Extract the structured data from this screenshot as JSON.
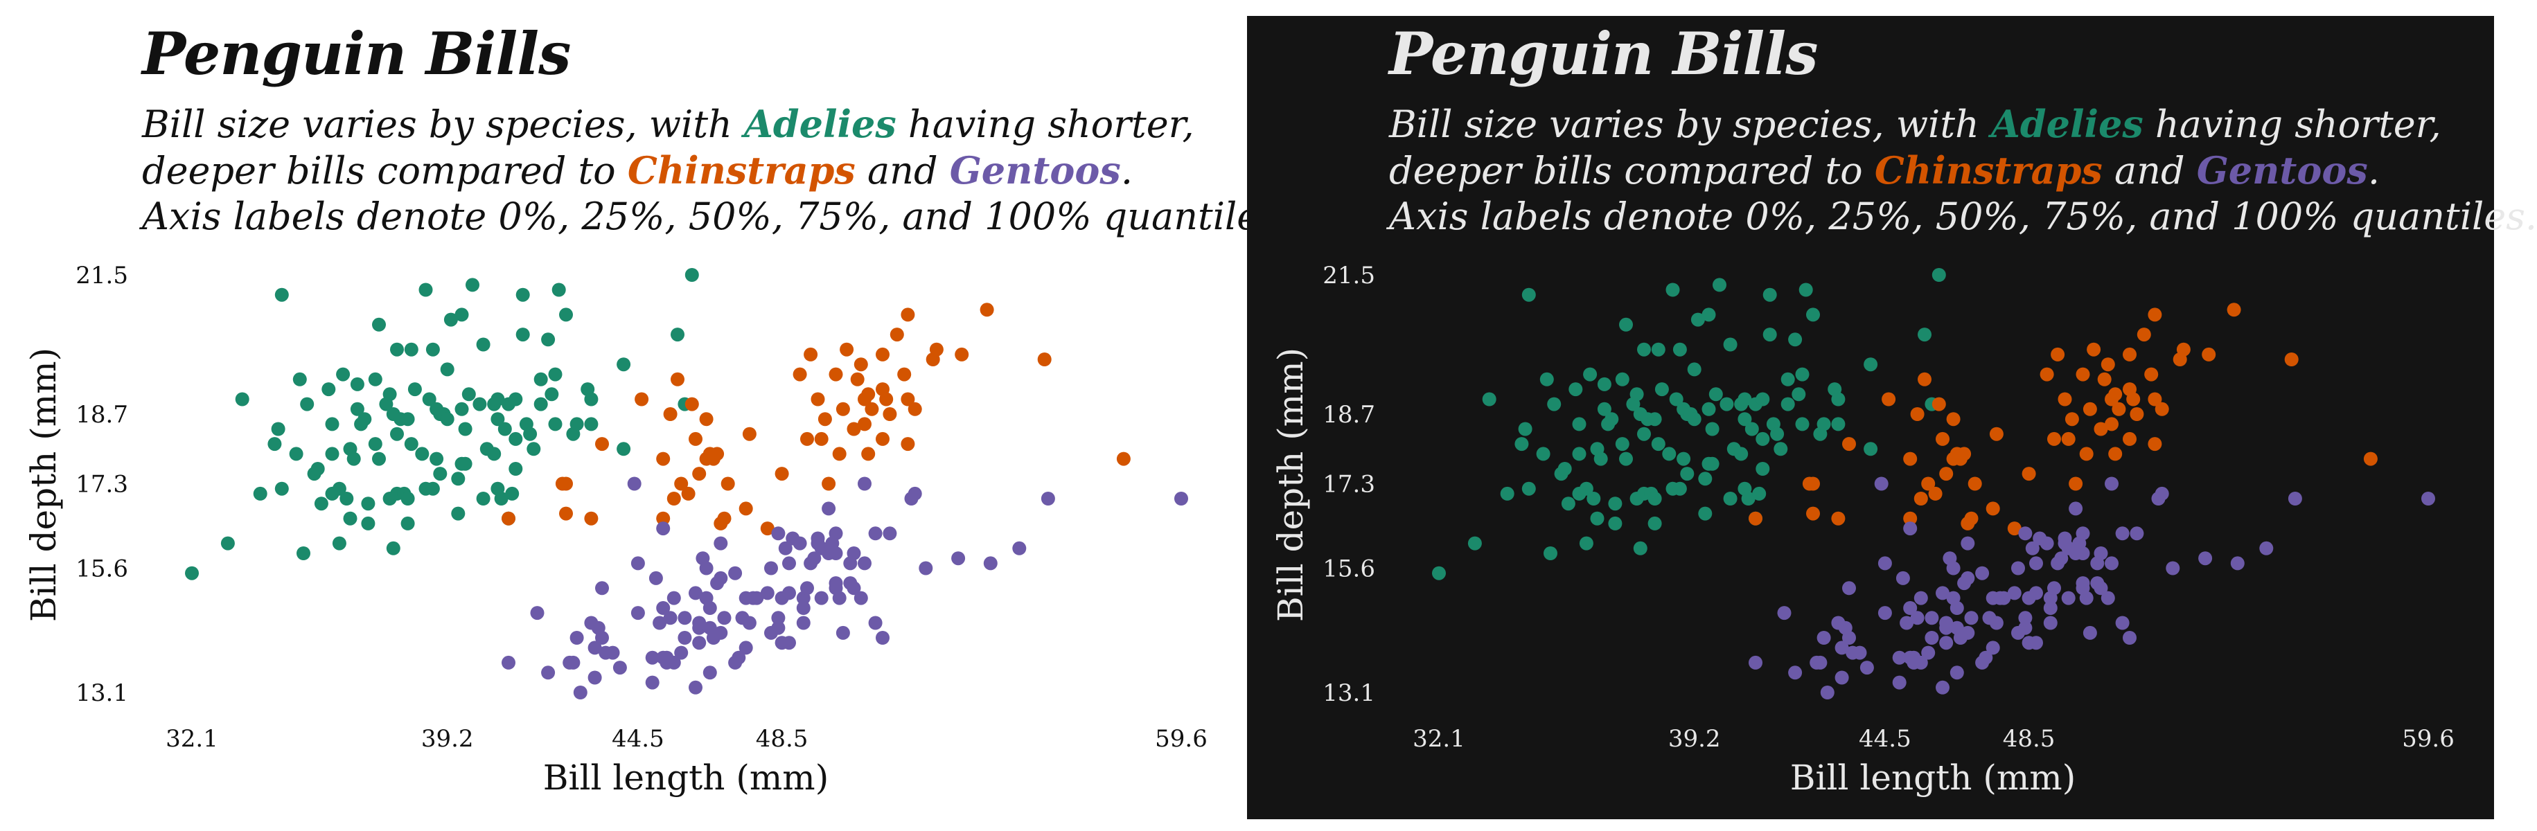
{
  "title": "Penguin Bills",
  "subtitle": {
    "line1_a": "Bill size varies by species, with ",
    "adelie": "Adelies",
    "line1_b": " having shorter,",
    "line2_a": "deeper bills compared to ",
    "chinstrap": "Chinstraps",
    "line2_b": " and ",
    "gentoo": "Gentoos",
    "line2_c": ".",
    "line3": "Axis labels denote 0%, 25%, 50%, 75%, and 100% quantiles."
  },
  "colors": {
    "adelie": "#1b8a6b",
    "chinstrap": "#d35400",
    "gentoo": "#6c5aa8",
    "light_bg": "#ffffff",
    "dark_bg": "#141414",
    "light_text": "#111111",
    "dark_text": "#e8e8e8"
  },
  "chart_data": {
    "type": "scatter",
    "xlabel": "Bill length (mm)",
    "ylabel": "Bill depth (mm)",
    "xlim": [
      32.1,
      59.6
    ],
    "ylim": [
      13.1,
      21.5
    ],
    "xticks": [
      32.1,
      39.2,
      44.5,
      48.5,
      59.6
    ],
    "yticks": [
      13.1,
      15.6,
      17.3,
      18.7,
      21.5
    ],
    "grid": false,
    "legend": "none",
    "series": [
      {
        "name": "Adelie",
        "points": [
          [
            32.1,
            15.5
          ],
          [
            33.1,
            16.1
          ],
          [
            33.5,
            19.0
          ],
          [
            34.0,
            17.1
          ],
          [
            34.4,
            18.1
          ],
          [
            34.5,
            18.4
          ],
          [
            34.6,
            17.2
          ],
          [
            34.6,
            21.1
          ],
          [
            35.0,
            17.9
          ],
          [
            35.1,
            19.4
          ],
          [
            35.2,
            15.9
          ],
          [
            35.3,
            18.9
          ],
          [
            35.5,
            17.5
          ],
          [
            35.6,
            17.6
          ],
          [
            35.7,
            16.9
          ],
          [
            35.9,
            19.2
          ],
          [
            36.0,
            17.9
          ],
          [
            36.0,
            18.5
          ],
          [
            36.0,
            17.1
          ],
          [
            36.2,
            16.1
          ],
          [
            36.2,
            17.2
          ],
          [
            36.3,
            19.5
          ],
          [
            36.4,
            17.0
          ],
          [
            36.5,
            18.0
          ],
          [
            36.5,
            16.6
          ],
          [
            36.6,
            17.8
          ],
          [
            36.7,
            18.8
          ],
          [
            36.7,
            19.3
          ],
          [
            36.8,
            18.5
          ],
          [
            36.9,
            18.6
          ],
          [
            37.0,
            16.9
          ],
          [
            37.0,
            16.5
          ],
          [
            37.2,
            18.1
          ],
          [
            37.2,
            19.4
          ],
          [
            37.3,
            20.5
          ],
          [
            37.3,
            17.8
          ],
          [
            37.5,
            18.9
          ],
          [
            37.6,
            19.1
          ],
          [
            37.6,
            17.0
          ],
          [
            37.7,
            18.7
          ],
          [
            37.7,
            16.0
          ],
          [
            37.8,
            17.1
          ],
          [
            37.8,
            18.3
          ],
          [
            37.8,
            20.0
          ],
          [
            37.9,
            18.6
          ],
          [
            38.0,
            17.1
          ],
          [
            38.1,
            18.6
          ],
          [
            38.1,
            17.0
          ],
          [
            38.1,
            16.5
          ],
          [
            38.2,
            18.1
          ],
          [
            38.2,
            20.0
          ],
          [
            38.3,
            19.2
          ],
          [
            38.5,
            17.9
          ],
          [
            38.6,
            21.2
          ],
          [
            38.6,
            17.2
          ],
          [
            38.7,
            19.0
          ],
          [
            38.8,
            17.2
          ],
          [
            38.8,
            20.0
          ],
          [
            38.9,
            17.8
          ],
          [
            38.9,
            18.8
          ],
          [
            39.0,
            17.5
          ],
          [
            39.0,
            18.7
          ],
          [
            39.1,
            18.7
          ],
          [
            39.2,
            19.6
          ],
          [
            39.2,
            18.6
          ],
          [
            39.3,
            20.6
          ],
          [
            39.5,
            17.4
          ],
          [
            39.5,
            16.7
          ],
          [
            39.6,
            18.8
          ],
          [
            39.6,
            17.7
          ],
          [
            39.6,
            20.7
          ],
          [
            39.7,
            18.4
          ],
          [
            39.7,
            17.7
          ],
          [
            39.8,
            19.1
          ],
          [
            39.9,
            21.3
          ],
          [
            40.1,
            18.9
          ],
          [
            40.2,
            17.0
          ],
          [
            40.2,
            20.1
          ],
          [
            40.3,
            18.0
          ],
          [
            40.5,
            17.9
          ],
          [
            40.5,
            18.9
          ],
          [
            40.6,
            18.6
          ],
          [
            40.6,
            17.2
          ],
          [
            40.6,
            19.0
          ],
          [
            40.7,
            17.0
          ],
          [
            40.8,
            18.4
          ],
          [
            40.9,
            16.6
          ],
          [
            40.9,
            18.9
          ],
          [
            41.0,
            17.1
          ],
          [
            41.1,
            17.6
          ],
          [
            41.1,
            19.0
          ],
          [
            41.1,
            18.2
          ],
          [
            41.3,
            20.3
          ],
          [
            41.3,
            21.1
          ],
          [
            41.4,
            18.5
          ],
          [
            41.5,
            18.3
          ],
          [
            41.6,
            18.0
          ],
          [
            41.8,
            19.4
          ],
          [
            41.8,
            18.9
          ],
          [
            42.0,
            20.2
          ],
          [
            42.1,
            19.1
          ],
          [
            42.2,
            18.5
          ],
          [
            42.2,
            19.5
          ],
          [
            42.3,
            21.2
          ],
          [
            42.5,
            20.7
          ],
          [
            42.7,
            18.3
          ],
          [
            42.8,
            18.5
          ],
          [
            43.1,
            19.2
          ],
          [
            43.2,
            19.0
          ],
          [
            43.2,
            18.5
          ],
          [
            44.1,
            19.7
          ],
          [
            44.1,
            18.0
          ],
          [
            45.6,
            20.3
          ],
          [
            45.8,
            18.9
          ],
          [
            46.0,
            21.5
          ]
        ]
      },
      {
        "name": "Chinstrap",
        "points": [
          [
            40.9,
            16.6
          ],
          [
            42.4,
            17.3
          ],
          [
            42.5,
            17.3
          ],
          [
            42.5,
            16.7
          ],
          [
            43.2,
            16.6
          ],
          [
            43.5,
            18.1
          ],
          [
            44.6,
            19.0
          ],
          [
            45.2,
            16.6
          ],
          [
            45.2,
            17.8
          ],
          [
            45.4,
            18.7
          ],
          [
            45.5,
            17.0
          ],
          [
            45.6,
            19.4
          ],
          [
            45.7,
            17.3
          ],
          [
            45.9,
            17.1
          ],
          [
            46.0,
            18.9
          ],
          [
            46.1,
            18.2
          ],
          [
            46.2,
            17.5
          ],
          [
            46.4,
            17.8
          ],
          [
            46.4,
            18.6
          ],
          [
            46.5,
            17.9
          ],
          [
            46.6,
            17.8
          ],
          [
            46.7,
            17.9
          ],
          [
            46.8,
            16.5
          ],
          [
            46.9,
            16.6
          ],
          [
            47.0,
            17.3
          ],
          [
            47.5,
            16.8
          ],
          [
            47.6,
            18.3
          ],
          [
            48.1,
            16.4
          ],
          [
            48.5,
            17.5
          ],
          [
            49.0,
            19.5
          ],
          [
            49.2,
            18.2
          ],
          [
            49.3,
            19.9
          ],
          [
            49.5,
            19.0
          ],
          [
            49.6,
            18.2
          ],
          [
            49.7,
            18.6
          ],
          [
            49.8,
            17.3
          ],
          [
            50.0,
            19.5
          ],
          [
            50.1,
            17.9
          ],
          [
            50.2,
            18.8
          ],
          [
            50.3,
            20.0
          ],
          [
            50.5,
            18.4
          ],
          [
            50.6,
            19.4
          ],
          [
            50.7,
            19.7
          ],
          [
            50.8,
            18.5
          ],
          [
            50.8,
            19.0
          ],
          [
            50.9,
            17.9
          ],
          [
            50.9,
            19.1
          ],
          [
            51.0,
            18.8
          ],
          [
            51.3,
            18.2
          ],
          [
            51.3,
            19.2
          ],
          [
            51.3,
            19.9
          ],
          [
            51.4,
            19.0
          ],
          [
            51.5,
            18.7
          ],
          [
            51.7,
            20.3
          ],
          [
            51.9,
            19.5
          ],
          [
            52.0,
            18.1
          ],
          [
            52.0,
            19.0
          ],
          [
            52.0,
            20.7
          ],
          [
            52.2,
            18.8
          ],
          [
            52.7,
            19.8
          ],
          [
            52.8,
            20.0
          ],
          [
            53.5,
            19.9
          ],
          [
            54.2,
            20.8
          ],
          [
            55.8,
            19.8
          ],
          [
            58.0,
            17.8
          ]
        ]
      },
      {
        "name": "Gentoo",
        "points": [
          [
            40.9,
            13.7
          ],
          [
            41.7,
            14.7
          ],
          [
            42.0,
            13.5
          ],
          [
            42.6,
            13.7
          ],
          [
            42.7,
            13.7
          ],
          [
            42.8,
            14.2
          ],
          [
            42.9,
            13.1
          ],
          [
            43.2,
            14.5
          ],
          [
            43.3,
            13.4
          ],
          [
            43.3,
            14.0
          ],
          [
            43.4,
            14.4
          ],
          [
            43.5,
            14.2
          ],
          [
            43.5,
            15.2
          ],
          [
            43.6,
            13.9
          ],
          [
            43.8,
            13.9
          ],
          [
            44.0,
            13.6
          ],
          [
            44.4,
            17.3
          ],
          [
            44.5,
            14.7
          ],
          [
            44.5,
            15.7
          ],
          [
            44.9,
            13.3
          ],
          [
            44.9,
            13.8
          ],
          [
            45.0,
            15.4
          ],
          [
            45.1,
            14.5
          ],
          [
            45.2,
            13.8
          ],
          [
            45.2,
            14.8
          ],
          [
            45.2,
            16.4
          ],
          [
            45.3,
            13.7
          ],
          [
            45.3,
            13.8
          ],
          [
            45.4,
            14.6
          ],
          [
            45.5,
            13.7
          ],
          [
            45.5,
            15.0
          ],
          [
            45.7,
            13.9
          ],
          [
            45.8,
            14.2
          ],
          [
            45.8,
            14.6
          ],
          [
            46.1,
            13.2
          ],
          [
            46.1,
            15.1
          ],
          [
            46.2,
            14.1
          ],
          [
            46.2,
            14.4
          ],
          [
            46.2,
            14.5
          ],
          [
            46.3,
            15.8
          ],
          [
            46.4,
            15.0
          ],
          [
            46.4,
            15.6
          ],
          [
            46.5,
            13.5
          ],
          [
            46.5,
            14.4
          ],
          [
            46.5,
            14.8
          ],
          [
            46.6,
            14.2
          ],
          [
            46.7,
            15.3
          ],
          [
            46.8,
            14.3
          ],
          [
            46.8,
            15.4
          ],
          [
            46.8,
            16.1
          ],
          [
            46.9,
            14.6
          ],
          [
            47.2,
            13.7
          ],
          [
            47.2,
            15.5
          ],
          [
            47.3,
            13.8
          ],
          [
            47.4,
            14.6
          ],
          [
            47.5,
            14.0
          ],
          [
            47.5,
            15.0
          ],
          [
            47.6,
            14.5
          ],
          [
            47.7,
            15.0
          ],
          [
            47.8,
            15.0
          ],
          [
            48.1,
            15.1
          ],
          [
            48.2,
            14.3
          ],
          [
            48.2,
            15.6
          ],
          [
            48.4,
            14.4
          ],
          [
            48.4,
            14.6
          ],
          [
            48.4,
            16.3
          ],
          [
            48.5,
            14.1
          ],
          [
            48.5,
            15.0
          ],
          [
            48.6,
            16.0
          ],
          [
            48.7,
            14.1
          ],
          [
            48.7,
            15.1
          ],
          [
            48.7,
            15.7
          ],
          [
            48.8,
            16.2
          ],
          [
            49.0,
            16.1
          ],
          [
            49.1,
            14.5
          ],
          [
            49.1,
            14.8
          ],
          [
            49.1,
            15.0
          ],
          [
            49.2,
            15.2
          ],
          [
            49.3,
            15.7
          ],
          [
            49.4,
            15.8
          ],
          [
            49.5,
            16.1
          ],
          [
            49.5,
            16.2
          ],
          [
            49.6,
            15.0
          ],
          [
            49.6,
            16.0
          ],
          [
            49.8,
            15.9
          ],
          [
            49.8,
            16.8
          ],
          [
            49.9,
            16.1
          ],
          [
            50.0,
            15.2
          ],
          [
            50.0,
            15.3
          ],
          [
            50.0,
            15.9
          ],
          [
            50.0,
            16.3
          ],
          [
            50.1,
            15.0
          ],
          [
            50.2,
            14.3
          ],
          [
            50.4,
            15.3
          ],
          [
            50.4,
            15.7
          ],
          [
            50.5,
            15.2
          ],
          [
            50.5,
            15.9
          ],
          [
            50.7,
            15.0
          ],
          [
            50.8,
            15.7
          ],
          [
            50.8,
            17.3
          ],
          [
            51.1,
            14.5
          ],
          [
            51.1,
            16.3
          ],
          [
            51.3,
            14.2
          ],
          [
            51.5,
            16.3
          ],
          [
            52.1,
            17.0
          ],
          [
            52.2,
            17.1
          ],
          [
            52.5,
            15.6
          ],
          [
            53.4,
            15.8
          ],
          [
            54.3,
            15.7
          ],
          [
            55.1,
            16.0
          ],
          [
            55.9,
            17.0
          ],
          [
            59.6,
            17.0
          ]
        ]
      }
    ]
  }
}
